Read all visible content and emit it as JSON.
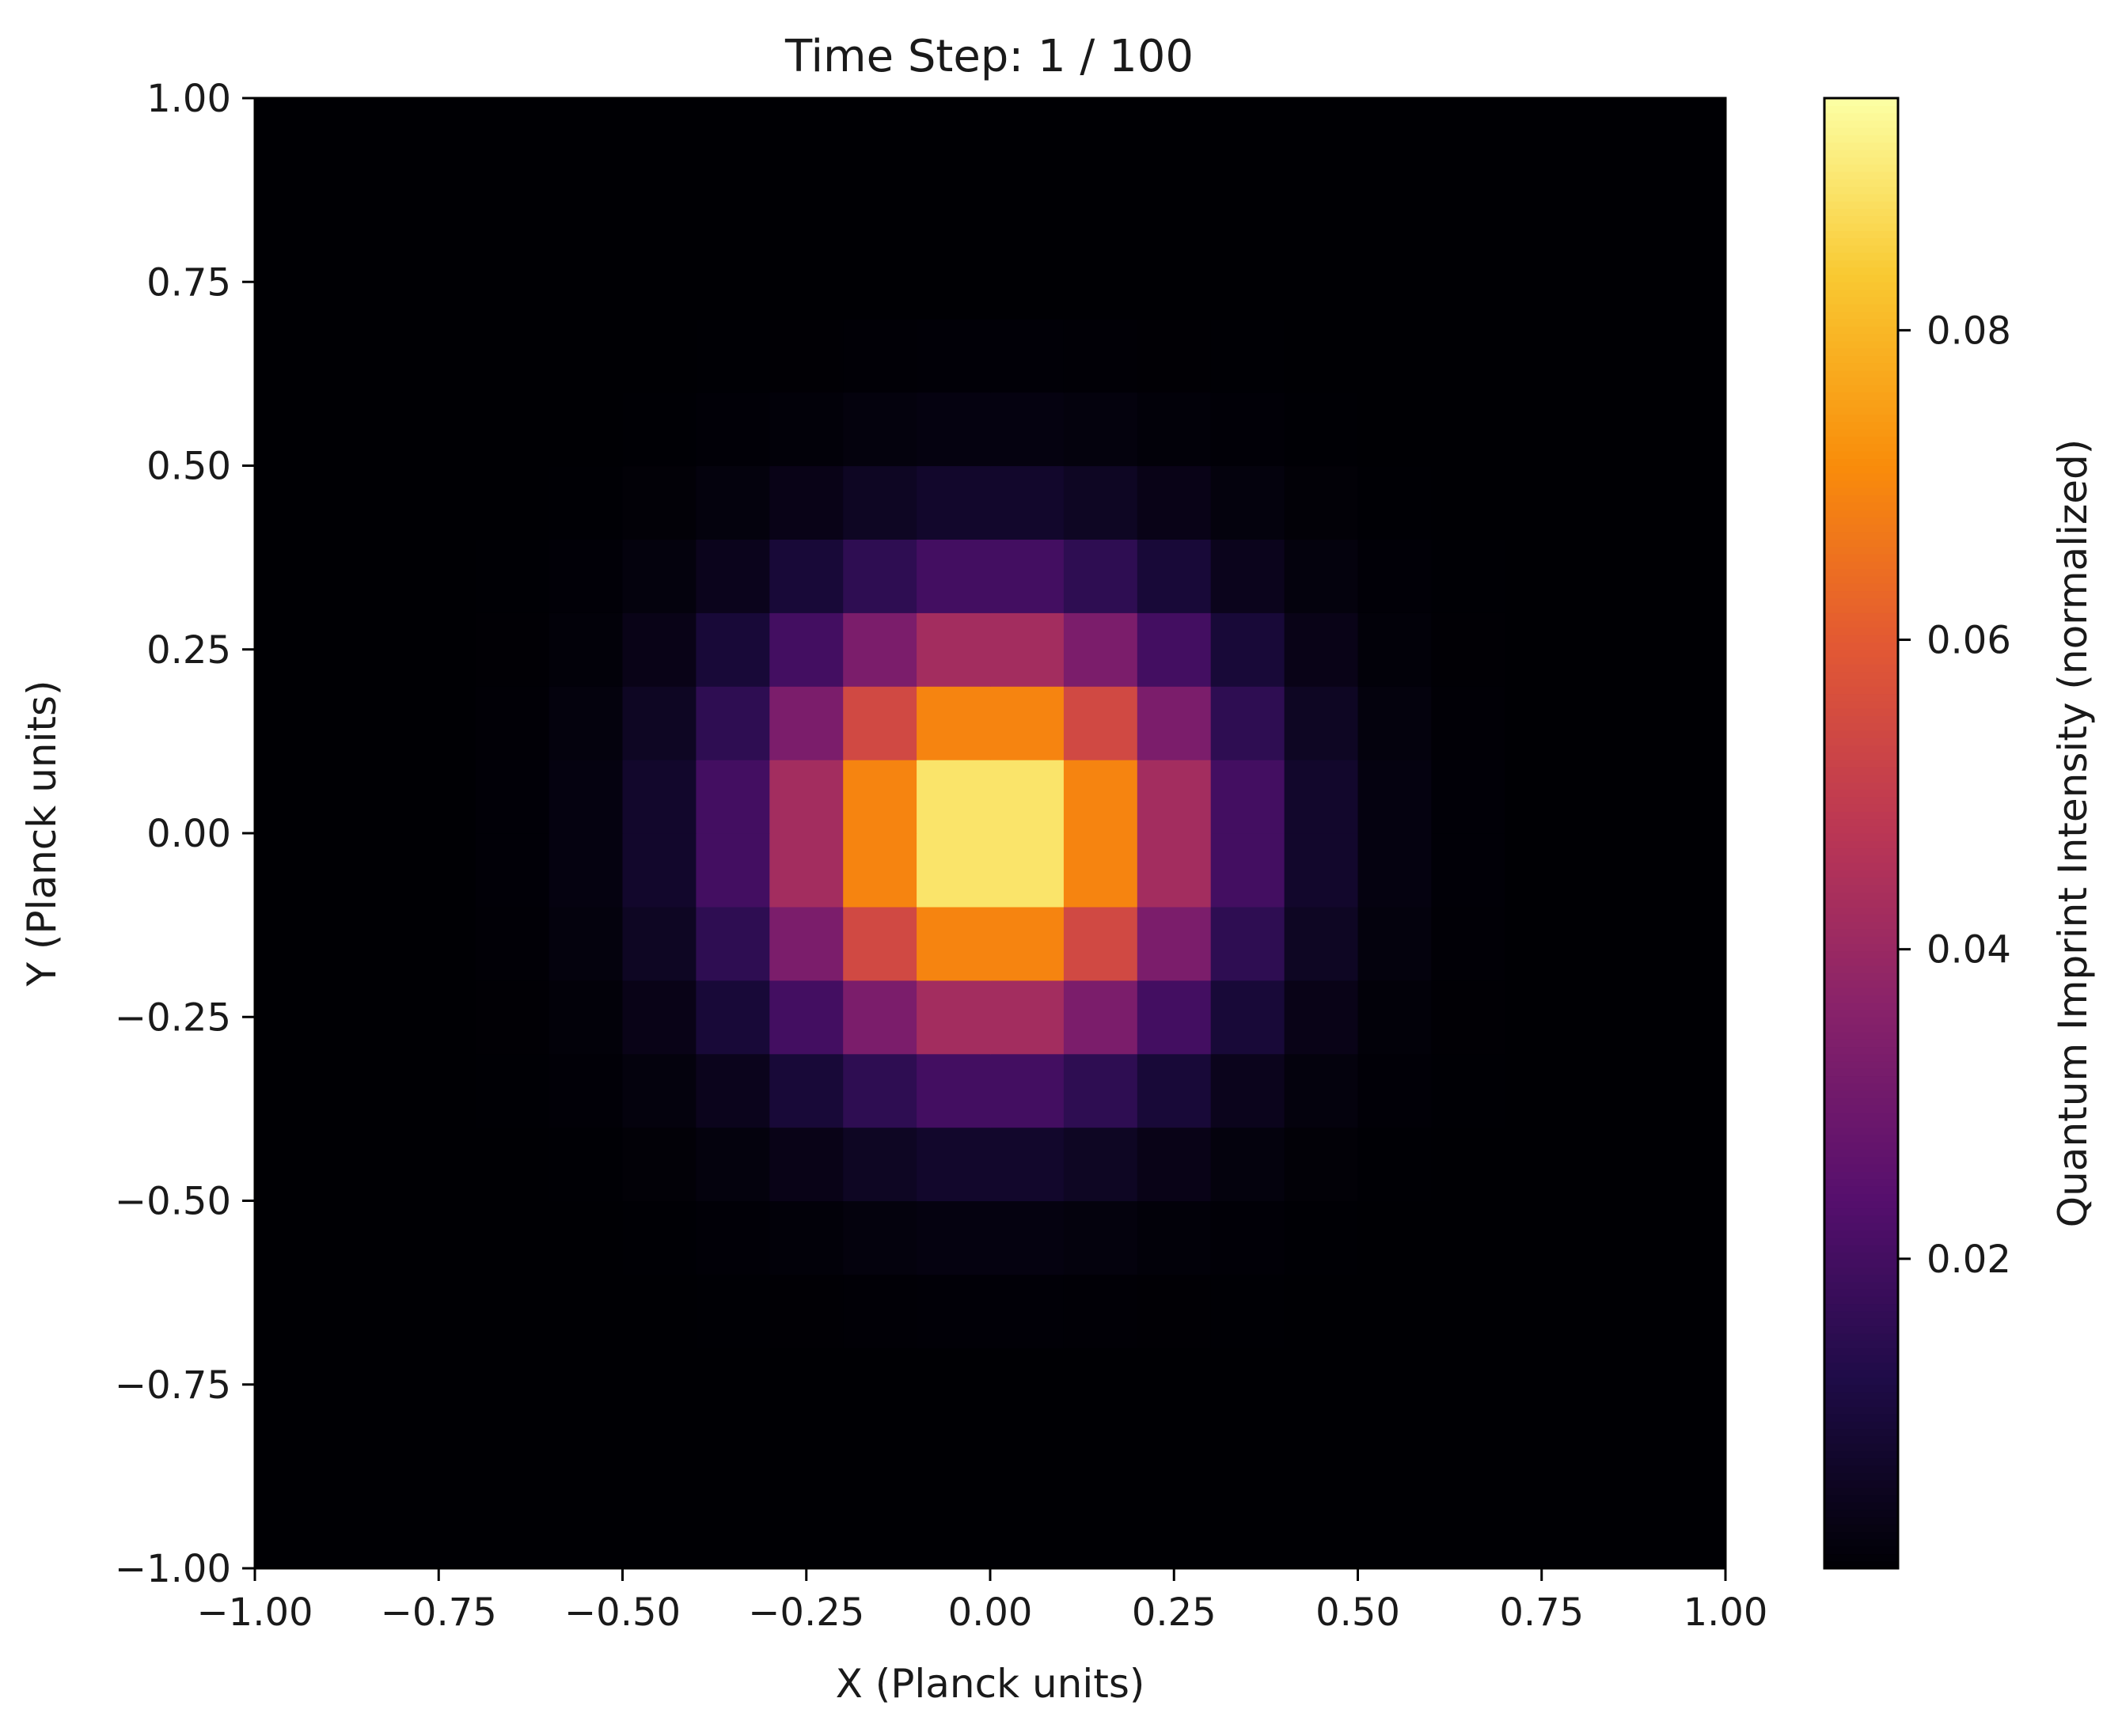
{
  "chart_data": {
    "type": "heatmap",
    "title": "Time Step: 1 / 100",
    "xlabel": "X (Planck units)",
    "ylabel": "Y (Planck units)",
    "colorbar_label": "Quantum Imprint Intensity (normalized)",
    "colormap": "inferno",
    "xlim": [
      -1.0,
      1.0
    ],
    "ylim": [
      -1.0,
      1.0
    ],
    "x_ticks": [
      -1.0,
      -0.75,
      -0.5,
      -0.25,
      0.0,
      0.25,
      0.5,
      0.75,
      1.0
    ],
    "x_tick_labels": [
      "−1.00",
      "−0.75",
      "−0.50",
      "−0.25",
      "0.00",
      "0.25",
      "0.50",
      "0.75",
      "1.00"
    ],
    "y_ticks": [
      1.0,
      0.75,
      0.5,
      0.25,
      0.0,
      -0.25,
      -0.5,
      -0.75,
      -1.0
    ],
    "y_tick_labels": [
      "1.00",
      "0.75",
      "0.50",
      "0.25",
      "0.00",
      "−0.25",
      "−0.50",
      "−0.75",
      "−1.00"
    ],
    "colorbar_range": [
      0.0,
      0.095
    ],
    "colorbar_ticks": [
      0.02,
      0.04,
      0.06,
      0.08
    ],
    "colorbar_tick_labels": [
      "0.02",
      "0.04",
      "0.06",
      "0.08"
    ],
    "grid_size": 20,
    "x_centers": [
      -0.95,
      -0.85,
      -0.75,
      -0.65,
      -0.55,
      -0.45,
      -0.35,
      -0.25,
      -0.15,
      -0.05,
      0.05,
      0.15,
      0.25,
      0.35,
      0.45,
      0.55,
      0.65,
      0.75,
      0.85,
      0.95
    ],
    "y_centers": [
      -0.95,
      -0.85,
      -0.75,
      -0.65,
      -0.55,
      -0.45,
      -0.35,
      -0.25,
      -0.15,
      -0.05,
      0.05,
      0.15,
      0.25,
      0.35,
      0.45,
      0.55,
      0.65,
      0.75,
      0.85,
      0.95
    ],
    "peak_value": 0.095,
    "gaussian_sigma": 0.2,
    "grid": false
  }
}
